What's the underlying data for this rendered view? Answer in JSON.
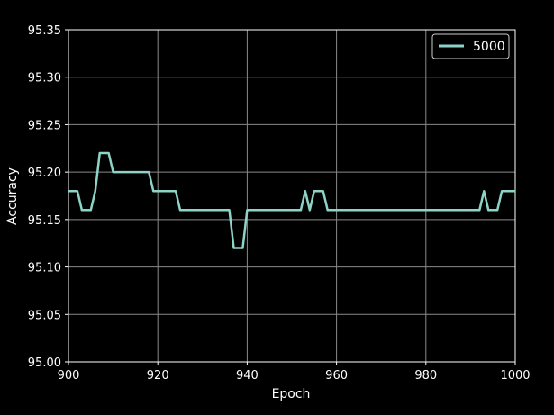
{
  "chart_data": {
    "type": "line",
    "title": "",
    "xlabel": "Epoch",
    "ylabel": "Accuracy",
    "xlim": [
      900,
      1000
    ],
    "ylim": [
      95.0,
      95.35
    ],
    "xticks": [
      900,
      920,
      940,
      960,
      980,
      1000
    ],
    "xtick_labels": [
      "900",
      "920",
      "940",
      "960",
      "980",
      "1000"
    ],
    "yticks": [
      95.0,
      95.05,
      95.1,
      95.15,
      95.2,
      95.25,
      95.3,
      95.35
    ],
    "ytick_labels": [
      "95.00",
      "95.05",
      "95.10",
      "95.15",
      "95.20",
      "95.25",
      "95.30",
      "95.35"
    ],
    "grid": true,
    "legend_position": "top-right",
    "background": "#000000",
    "series": [
      {
        "name": "5000",
        "color": "#8dd3c7",
        "x": [
          900,
          901,
          902,
          903,
          904,
          905,
          906,
          907,
          908,
          909,
          910,
          911,
          912,
          913,
          914,
          915,
          916,
          917,
          918,
          919,
          920,
          921,
          922,
          923,
          924,
          925,
          926,
          927,
          928,
          929,
          930,
          931,
          932,
          933,
          934,
          935,
          936,
          937,
          938,
          939,
          940,
          941,
          942,
          943,
          944,
          945,
          946,
          947,
          948,
          949,
          950,
          951,
          952,
          953,
          954,
          955,
          956,
          957,
          958,
          959,
          960,
          961,
          962,
          963,
          964,
          965,
          966,
          967,
          968,
          969,
          970,
          971,
          972,
          973,
          974,
          975,
          976,
          977,
          978,
          979,
          980,
          981,
          982,
          983,
          984,
          985,
          986,
          987,
          988,
          989,
          990,
          991,
          992,
          993,
          994,
          995,
          996,
          997,
          998,
          999,
          1000
        ],
        "y": [
          95.18,
          95.18,
          95.18,
          95.16,
          95.16,
          95.16,
          95.18,
          95.22,
          95.22,
          95.22,
          95.2,
          95.2,
          95.2,
          95.2,
          95.2,
          95.2,
          95.2,
          95.2,
          95.2,
          95.18,
          95.18,
          95.18,
          95.18,
          95.18,
          95.18,
          95.16,
          95.16,
          95.16,
          95.16,
          95.16,
          95.16,
          95.16,
          95.16,
          95.16,
          95.16,
          95.16,
          95.16,
          95.12,
          95.12,
          95.12,
          95.16,
          95.16,
          95.16,
          95.16,
          95.16,
          95.16,
          95.16,
          95.16,
          95.16,
          95.16,
          95.16,
          95.16,
          95.16,
          95.18,
          95.16,
          95.18,
          95.18,
          95.18,
          95.16,
          95.16,
          95.16,
          95.16,
          95.16,
          95.16,
          95.16,
          95.16,
          95.16,
          95.16,
          95.16,
          95.16,
          95.16,
          95.16,
          95.16,
          95.16,
          95.16,
          95.16,
          95.16,
          95.16,
          95.16,
          95.16,
          95.16,
          95.16,
          95.16,
          95.16,
          95.16,
          95.16,
          95.16,
          95.16,
          95.16,
          95.16,
          95.16,
          95.16,
          95.16,
          95.18,
          95.16,
          95.16,
          95.16,
          95.18,
          95.18,
          95.18,
          95.18
        ]
      }
    ]
  }
}
